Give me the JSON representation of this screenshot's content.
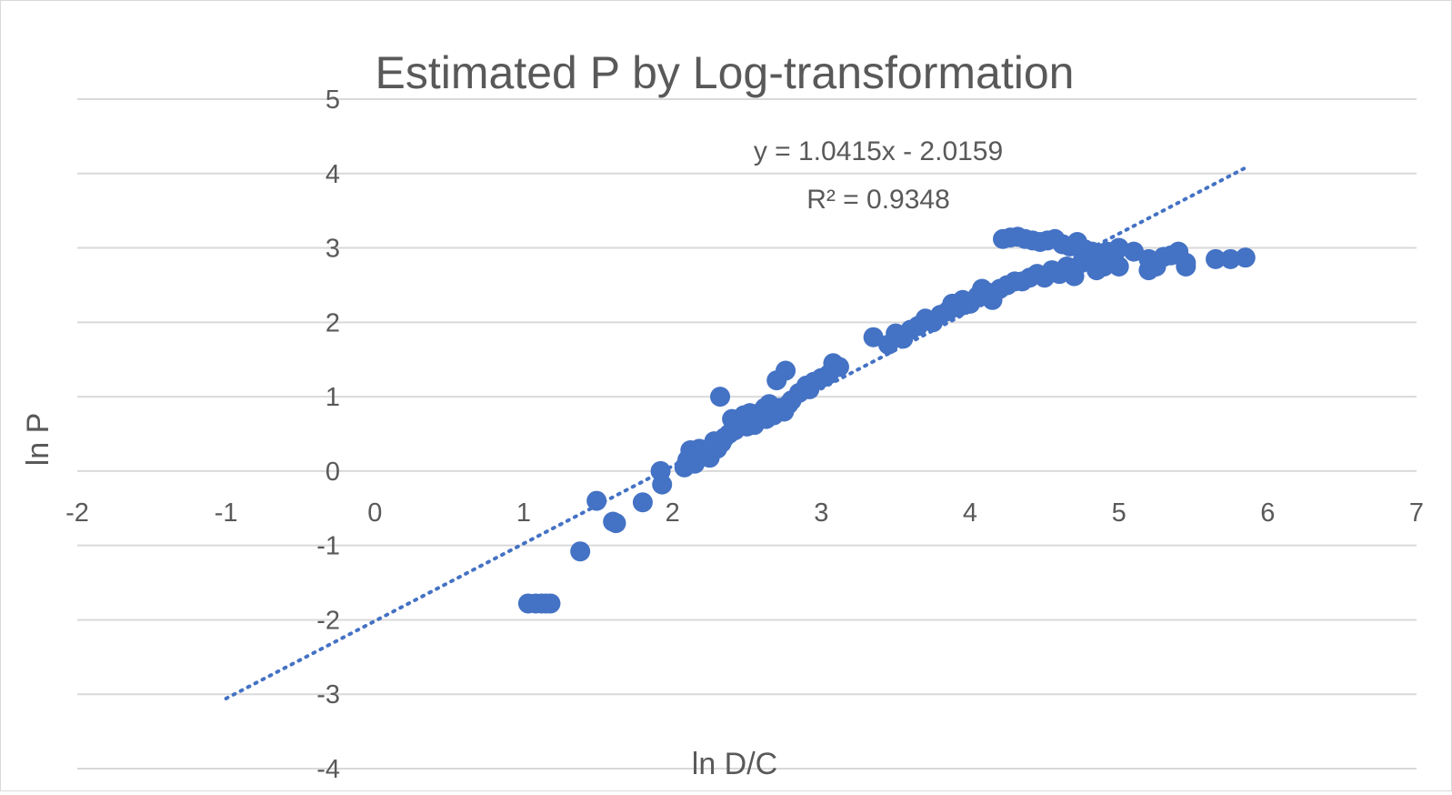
{
  "chart_data": {
    "type": "scatter",
    "title": "Estimated P by Log-transformation",
    "xlabel": "ln D/C",
    "ylabel": "ln P",
    "xlim": [
      -2,
      7
    ],
    "ylim": [
      -4,
      5
    ],
    "x_ticks": [
      "-2",
      "-1",
      "0",
      "1",
      "2",
      "3",
      "4",
      "5",
      "6",
      "7"
    ],
    "y_ticks": [
      "5",
      "4",
      "3",
      "2",
      "1",
      "0",
      "-1",
      "-2",
      "-3",
      "-4"
    ],
    "grid": "horizontal",
    "legend": "none",
    "series_color": "#4472C4",
    "trendline": {
      "type": "linear",
      "style": "dotted",
      "slope": 1.0415,
      "intercept": -2.0159,
      "x_start": -1.0,
      "x_end": 5.85,
      "equation": "y = 1.0415x - 2.0159",
      "r_squared": "R² = 0.9348"
    },
    "series": [
      {
        "points": [
          [
            1.03,
            -1.78
          ],
          [
            1.08,
            -1.78
          ],
          [
            1.12,
            -1.78
          ],
          [
            1.15,
            -1.78
          ],
          [
            1.18,
            -1.78
          ],
          [
            1.38,
            -1.08
          ],
          [
            1.49,
            -0.4
          ],
          [
            1.6,
            -0.68
          ],
          [
            1.62,
            -0.7
          ],
          [
            1.8,
            -0.42
          ],
          [
            1.92,
            0.0
          ],
          [
            1.93,
            -0.18
          ],
          [
            2.08,
            0.05
          ],
          [
            2.1,
            0.15
          ],
          [
            2.12,
            0.28
          ],
          [
            2.15,
            0.1
          ],
          [
            2.18,
            0.3
          ],
          [
            2.2,
            0.2
          ],
          [
            2.22,
            0.25
          ],
          [
            2.25,
            0.18
          ],
          [
            2.28,
            0.4
          ],
          [
            2.3,
            0.3
          ],
          [
            2.32,
            1.0
          ],
          [
            2.33,
            0.38
          ],
          [
            2.35,
            0.45
          ],
          [
            2.38,
            0.5
          ],
          [
            2.4,
            0.7
          ],
          [
            2.42,
            0.55
          ],
          [
            2.45,
            0.65
          ],
          [
            2.48,
            0.75
          ],
          [
            2.5,
            0.6
          ],
          [
            2.52,
            0.78
          ],
          [
            2.55,
            0.62
          ],
          [
            2.58,
            0.7
          ],
          [
            2.6,
            0.8
          ],
          [
            2.62,
            0.85
          ],
          [
            2.63,
            0.7
          ],
          [
            2.65,
            0.9
          ],
          [
            2.68,
            0.75
          ],
          [
            2.7,
            1.22
          ],
          [
            2.72,
            0.85
          ],
          [
            2.75,
            0.8
          ],
          [
            2.76,
            1.35
          ],
          [
            2.78,
            0.9
          ],
          [
            2.8,
            0.95
          ],
          [
            2.85,
            1.05
          ],
          [
            2.9,
            1.15
          ],
          [
            2.92,
            1.1
          ],
          [
            2.95,
            1.2
          ],
          [
            3.0,
            1.25
          ],
          [
            3.05,
            1.3
          ],
          [
            3.08,
            1.45
          ],
          [
            3.12,
            1.4
          ],
          [
            3.35,
            1.8
          ],
          [
            3.45,
            1.7
          ],
          [
            3.5,
            1.85
          ],
          [
            3.55,
            1.78
          ],
          [
            3.6,
            1.9
          ],
          [
            3.65,
            1.95
          ],
          [
            3.7,
            2.05
          ],
          [
            3.75,
            2.0
          ],
          [
            3.8,
            2.1
          ],
          [
            3.85,
            2.15
          ],
          [
            3.88,
            2.25
          ],
          [
            3.92,
            2.2
          ],
          [
            3.95,
            2.3
          ],
          [
            4.0,
            2.25
          ],
          [
            4.05,
            2.35
          ],
          [
            4.08,
            2.45
          ],
          [
            4.12,
            2.4
          ],
          [
            4.15,
            2.3
          ],
          [
            4.2,
            2.45
          ],
          [
            4.25,
            2.5
          ],
          [
            4.3,
            2.55
          ],
          [
            4.35,
            2.55
          ],
          [
            4.4,
            2.6
          ],
          [
            4.45,
            2.65
          ],
          [
            4.5,
            2.6
          ],
          [
            4.55,
            2.7
          ],
          [
            4.6,
            2.65
          ],
          [
            4.65,
            2.75
          ],
          [
            4.7,
            2.62
          ],
          [
            4.75,
            2.8
          ],
          [
            4.8,
            2.85
          ],
          [
            4.85,
            2.7
          ],
          [
            4.9,
            2.75
          ],
          [
            4.95,
            2.8
          ],
          [
            5.0,
            2.75
          ],
          [
            4.22,
            3.12
          ],
          [
            4.27,
            3.14
          ],
          [
            4.32,
            3.15
          ],
          [
            4.37,
            3.12
          ],
          [
            4.42,
            3.1
          ],
          [
            4.47,
            3.08
          ],
          [
            4.52,
            3.1
          ],
          [
            4.57,
            3.12
          ],
          [
            4.62,
            3.05
          ],
          [
            4.67,
            3.02
          ],
          [
            4.72,
            3.08
          ],
          [
            4.77,
            2.98
          ],
          [
            4.82,
            2.95
          ],
          [
            4.87,
            2.9
          ],
          [
            4.92,
            2.95
          ],
          [
            4.97,
            2.92
          ],
          [
            5.0,
            3.0
          ],
          [
            5.1,
            2.95
          ],
          [
            5.2,
            2.85
          ],
          [
            5.25,
            2.75
          ],
          [
            5.2,
            2.7
          ],
          [
            5.3,
            2.88
          ],
          [
            5.35,
            2.9
          ],
          [
            5.4,
            2.95
          ],
          [
            5.45,
            2.8
          ],
          [
            5.45,
            2.75
          ],
          [
            5.65,
            2.85
          ],
          [
            5.75,
            2.85
          ],
          [
            5.85,
            2.87
          ]
        ]
      }
    ]
  }
}
